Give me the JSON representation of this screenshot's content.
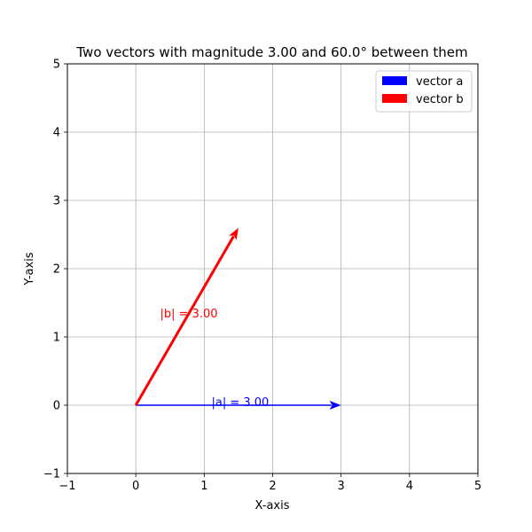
{
  "chart_data": {
    "type": "vector",
    "title": "Two vectors with magnitude 3.00 and 60.0° between them",
    "xlabel": "X-axis",
    "ylabel": "Y-axis",
    "xlim": [
      -1,
      5
    ],
    "ylim": [
      -1,
      5
    ],
    "xticks": [
      "−1",
      "0",
      "1",
      "2",
      "3",
      "4",
      "5"
    ],
    "yticks": [
      "−1",
      "0",
      "1",
      "2",
      "3",
      "4",
      "5"
    ],
    "grid": true,
    "legend_position": "top-right",
    "series": [
      {
        "name": "vector a",
        "color": "#0000ff",
        "origin": [
          0,
          0
        ],
        "end": [
          3.0,
          0.0
        ],
        "annotation": "|a| = 3.00",
        "annotation_at": [
          1.5,
          0.0
        ]
      },
      {
        "name": "vector b",
        "color": "#ff0000",
        "origin": [
          0,
          0
        ],
        "end": [
          1.5,
          2.598
        ],
        "annotation": "|b| = 3.00",
        "annotation_at": [
          0.75,
          1.299
        ]
      }
    ]
  }
}
